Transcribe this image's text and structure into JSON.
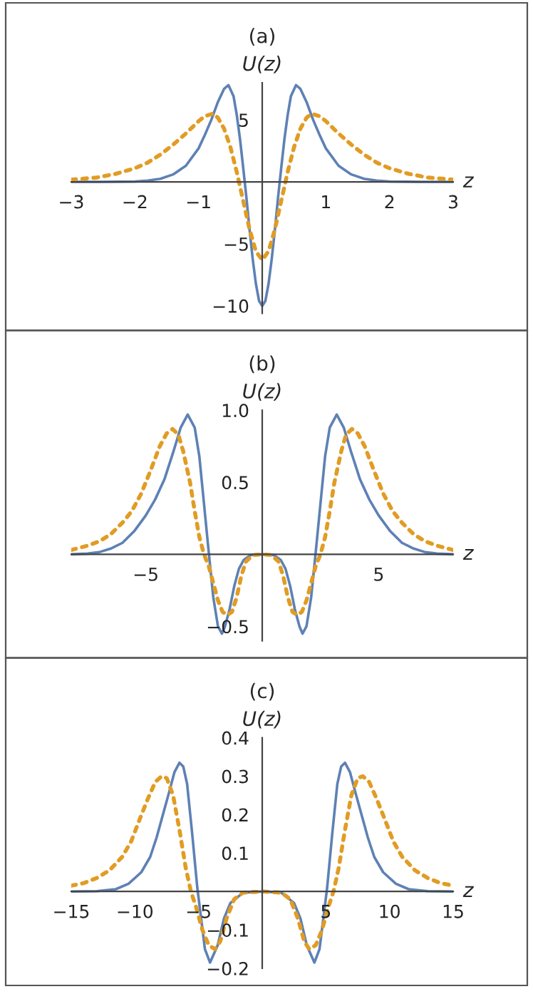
{
  "chart_data": [
    {
      "type": "line",
      "title": "(a)",
      "xlabel": "z",
      "ylabel": "U(z)",
      "xlim": [
        -3,
        3
      ],
      "ylim": [
        -10.6,
        8
      ],
      "xticks": [
        -3,
        -2,
        -1,
        1,
        2,
        3
      ],
      "yticks": [
        -10,
        -5,
        5
      ],
      "grid": false,
      "legend": false,
      "series": [
        {
          "color": "#5e81b5",
          "line_style": "solid",
          "x": [
            -3,
            -2.5,
            -2.0,
            -1.8,
            -1.6,
            -1.4,
            -1.2,
            -1.0,
            -0.9,
            -0.8,
            -0.7,
            -0.6,
            -0.53,
            -0.45,
            -0.4,
            -0.35,
            -0.3,
            -0.25,
            -0.2,
            -0.15,
            -0.1,
            -0.05,
            0,
            0.05,
            0.1,
            0.15,
            0.2,
            0.25,
            0.3,
            0.35,
            0.4,
            0.45,
            0.53,
            0.6,
            0.7,
            0.8,
            0.9,
            1.0,
            1.2,
            1.4,
            1.6,
            1.8,
            2.0,
            2.5,
            3
          ],
          "values": [
            0,
            0,
            0.03,
            0.1,
            0.25,
            0.6,
            1.3,
            2.7,
            3.8,
            5.0,
            6.4,
            7.5,
            7.8,
            6.9,
            5.4,
            3.5,
            1.2,
            -1.2,
            -3.8,
            -6.2,
            -8.2,
            -9.6,
            -10,
            -9.6,
            -8.2,
            -6.2,
            -3.8,
            -1.2,
            1.2,
            3.5,
            5.4,
            6.9,
            7.8,
            7.5,
            6.4,
            5.0,
            3.8,
            2.7,
            1.3,
            0.6,
            0.25,
            0.1,
            0.03,
            0,
            0
          ]
        },
        {
          "color": "#e19c24",
          "line_style": "dotted",
          "x": [
            -3,
            -2.6,
            -2.3,
            -2.0,
            -1.8,
            -1.6,
            -1.4,
            -1.2,
            -1.0,
            -0.9,
            -0.78,
            -0.7,
            -0.6,
            -0.5,
            -0.4,
            -0.3,
            -0.2,
            -0.1,
            0,
            0.1,
            0.2,
            0.3,
            0.4,
            0.5,
            0.6,
            0.7,
            0.78,
            0.9,
            1.0,
            1.2,
            1.4,
            1.6,
            1.8,
            2.0,
            2.3,
            2.6,
            3
          ],
          "values": [
            0.18,
            0.35,
            0.65,
            1.1,
            1.55,
            2.2,
            3.0,
            3.9,
            4.9,
            5.3,
            5.5,
            5.2,
            4.3,
            2.8,
            0.8,
            -1.5,
            -3.8,
            -5.6,
            -6.3,
            -5.6,
            -3.8,
            -1.5,
            0.8,
            2.8,
            4.3,
            5.2,
            5.5,
            5.3,
            4.9,
            3.9,
            3.0,
            2.2,
            1.55,
            1.1,
            0.65,
            0.35,
            0.18
          ]
        }
      ]
    },
    {
      "type": "line",
      "title": "(b)",
      "xlabel": "z",
      "ylabel": "U(z)",
      "xlim": [
        -8.2,
        8.2
      ],
      "ylim": [
        -0.6,
        1.0
      ],
      "xticks": [
        -5,
        5
      ],
      "yticks": [
        {
          "value": -0.5,
          "label": "−0.5"
        },
        {
          "value": 0.5,
          "label": "0.5"
        },
        {
          "value": 1.0,
          "label": "1.0"
        }
      ],
      "grid": false,
      "legend": false,
      "series": [
        {
          "color": "#5e81b5",
          "line_style": "solid",
          "x": [
            -8.2,
            -7.5,
            -7,
            -6.5,
            -6.0,
            -5.5,
            -5.0,
            -4.6,
            -4.2,
            -3.8,
            -3.5,
            -3.2,
            -2.9,
            -2.7,
            -2.5,
            -2.3,
            -2.1,
            -1.9,
            -1.73,
            -1.6,
            -1.4,
            -1.2,
            -1.0,
            -0.8,
            -0.5,
            0,
            0.5,
            0.8,
            1.0,
            1.2,
            1.4,
            1.6,
            1.73,
            1.9,
            2.1,
            2.3,
            2.5,
            2.7,
            2.9,
            3.2,
            3.5,
            3.8,
            4.2,
            4.6,
            5.0,
            5.5,
            6.0,
            6.5,
            7,
            7.5,
            8.2
          ],
          "values": [
            0,
            0.005,
            0.015,
            0.04,
            0.08,
            0.16,
            0.27,
            0.38,
            0.52,
            0.72,
            0.88,
            0.97,
            0.88,
            0.68,
            0.35,
            0.02,
            -0.3,
            -0.5,
            -0.55,
            -0.5,
            -0.38,
            -0.22,
            -0.1,
            -0.04,
            -0.005,
            0,
            -0.005,
            -0.04,
            -0.1,
            -0.22,
            -0.38,
            -0.5,
            -0.55,
            -0.5,
            -0.3,
            0.02,
            0.35,
            0.68,
            0.88,
            0.97,
            0.88,
            0.72,
            0.52,
            0.38,
            0.27,
            0.16,
            0.08,
            0.04,
            0.015,
            0.005,
            0
          ]
        },
        {
          "color": "#e19c24",
          "line_style": "dotted",
          "x": [
            -8.2,
            -7.5,
            -7.0,
            -6.5,
            -6.0,
            -5.6,
            -5.2,
            -4.8,
            -4.4,
            -4.1,
            -3.85,
            -3.6,
            -3.4,
            -3.1,
            -2.9,
            -2.7,
            -2.5,
            -2.3,
            -2.1,
            -1.9,
            -1.7,
            -1.5,
            -1.3,
            -1.1,
            -0.9,
            -0.7,
            -0.4,
            0,
            0.4,
            0.7,
            0.9,
            1.1,
            1.3,
            1.5,
            1.7,
            1.9,
            2.1,
            2.3,
            2.5,
            2.7,
            2.9,
            3.1,
            3.4,
            3.6,
            3.85,
            4.1,
            4.4,
            4.8,
            5.2,
            5.6,
            6.0,
            6.5,
            7.0,
            7.5,
            8.2
          ],
          "values": [
            0.03,
            0.06,
            0.09,
            0.14,
            0.22,
            0.3,
            0.42,
            0.58,
            0.75,
            0.84,
            0.87,
            0.83,
            0.72,
            0.5,
            0.3,
            0.12,
            0.0,
            -0.08,
            -0.2,
            -0.32,
            -0.4,
            -0.42,
            -0.4,
            -0.3,
            -0.15,
            -0.05,
            -0.005,
            0,
            -0.005,
            -0.05,
            -0.15,
            -0.3,
            -0.4,
            -0.42,
            -0.4,
            -0.32,
            -0.2,
            -0.08,
            0.0,
            0.12,
            0.3,
            0.5,
            0.72,
            0.83,
            0.87,
            0.84,
            0.75,
            0.58,
            0.42,
            0.3,
            0.22,
            0.14,
            0.09,
            0.06,
            0.03
          ]
        }
      ]
    },
    {
      "type": "line",
      "title": "(c)",
      "xlabel": "z",
      "ylabel": "U(z)",
      "xlim": [
        -15,
        15
      ],
      "ylim": [
        -0.2,
        0.4
      ],
      "xticks": [
        -15,
        -10,
        -5,
        5,
        10,
        15
      ],
      "yticks": [
        -0.2,
        -0.1,
        0.1,
        0.2,
        0.3,
        0.4
      ],
      "grid": false,
      "legend": false,
      "series": [
        {
          "color": "#5e81b5",
          "line_style": "solid",
          "x": [
            -15,
            -13,
            -11.5,
            -10.5,
            -9.5,
            -8.8,
            -8.3,
            -7.8,
            -7.3,
            -6.9,
            -6.5,
            -6.2,
            -5.9,
            -5.5,
            -5.1,
            -4.8,
            -4.5,
            -4.1,
            -3.5,
            -3,
            -2.5,
            -1.5,
            0,
            1.5,
            2.5,
            3,
            3.5,
            4.1,
            4.5,
            4.8,
            5.1,
            5.5,
            5.9,
            6.2,
            6.5,
            6.9,
            7.3,
            7.8,
            8.3,
            8.8,
            9.5,
            10.5,
            11.5,
            13,
            15
          ],
          "values": [
            0,
            0.001,
            0.006,
            0.02,
            0.05,
            0.09,
            0.14,
            0.2,
            0.26,
            0.31,
            0.335,
            0.325,
            0.28,
            0.15,
            0.01,
            -0.07,
            -0.15,
            -0.185,
            -0.14,
            -0.07,
            -0.03,
            -0.003,
            0,
            -0.003,
            -0.03,
            -0.07,
            -0.14,
            -0.185,
            -0.15,
            -0.07,
            0.01,
            0.15,
            0.28,
            0.325,
            0.335,
            0.31,
            0.26,
            0.2,
            0.14,
            0.09,
            0.05,
            0.02,
            0.006,
            0.001,
            0
          ]
        },
        {
          "color": "#e19c24",
          "line_style": "dotted",
          "x": [
            -15,
            -14,
            -13,
            -12,
            -11,
            -10.3,
            -9.6,
            -9,
            -8.4,
            -7.9,
            -7.5,
            -7.0,
            -6.5,
            -6.0,
            -5.6,
            -5.2,
            -4.7,
            -4.2,
            -3.7,
            -3.3,
            -2.8,
            -2.2,
            -1.5,
            0,
            1.5,
            2.2,
            2.8,
            3.3,
            3.7,
            4.2,
            4.7,
            5.2,
            5.6,
            6.0,
            6.5,
            7.0,
            7.5,
            7.9,
            8.4,
            9,
            9.6,
            10.3,
            11,
            12,
            13,
            14,
            15
          ],
          "values": [
            0.015,
            0.022,
            0.035,
            0.055,
            0.09,
            0.13,
            0.19,
            0.24,
            0.285,
            0.3,
            0.295,
            0.25,
            0.16,
            0.06,
            0,
            -0.04,
            -0.1,
            -0.14,
            -0.15,
            -0.13,
            -0.07,
            -0.02,
            -0.003,
            0,
            -0.003,
            -0.02,
            -0.07,
            -0.13,
            -0.15,
            -0.14,
            -0.1,
            -0.04,
            0,
            0.06,
            0.16,
            0.25,
            0.295,
            0.3,
            0.285,
            0.24,
            0.19,
            0.13,
            0.09,
            0.055,
            0.035,
            0.022,
            0.015
          ]
        }
      ]
    }
  ]
}
